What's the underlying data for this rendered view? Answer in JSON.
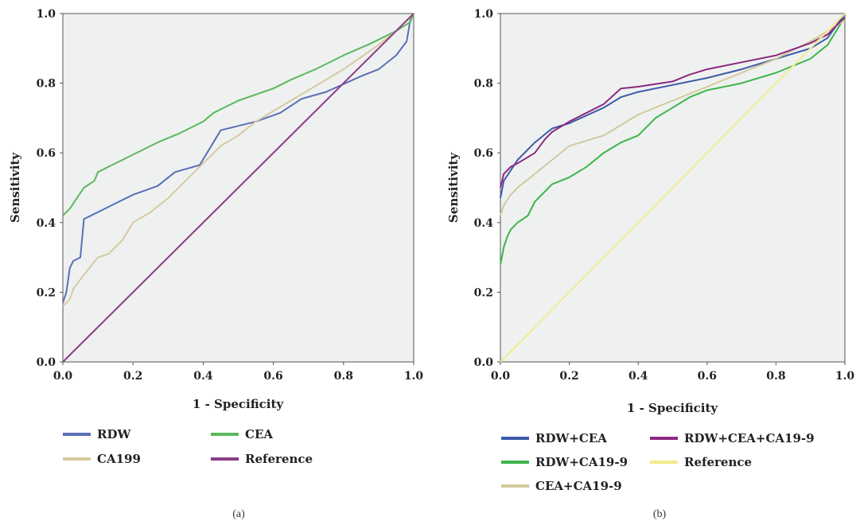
{
  "chart_data": [
    {
      "type": "line",
      "panel_label": "(a)",
      "xlabel": "1 - Specificity",
      "ylabel": "Sensitivity",
      "xlim": [
        0,
        1
      ],
      "ylim": [
        0,
        1
      ],
      "xticks": [
        "0.0",
        "0.2",
        "0.4",
        "0.6",
        "0.8",
        "1.0"
      ],
      "yticks": [
        "0.0",
        "0.2",
        "0.4",
        "0.6",
        "0.8",
        "1.0"
      ],
      "legend_position": "bottom",
      "series": [
        {
          "name": "RDW",
          "color": "#5a6fb5",
          "points": [
            [
              0,
              0.17
            ],
            [
              0.01,
              0.2
            ],
            [
              0.02,
              0.27
            ],
            [
              0.03,
              0.29
            ],
            [
              0.05,
              0.3
            ],
            [
              0.06,
              0.41
            ],
            [
              0.1,
              0.43
            ],
            [
              0.13,
              0.445
            ],
            [
              0.2,
              0.48
            ],
            [
              0.27,
              0.505
            ],
            [
              0.32,
              0.545
            ],
            [
              0.39,
              0.565
            ],
            [
              0.45,
              0.665
            ],
            [
              0.55,
              0.69
            ],
            [
              0.62,
              0.715
            ],
            [
              0.68,
              0.755
            ],
            [
              0.75,
              0.775
            ],
            [
              0.85,
              0.82
            ],
            [
              0.9,
              0.84
            ],
            [
              0.95,
              0.88
            ],
            [
              0.98,
              0.92
            ],
            [
              0.99,
              0.98
            ],
            [
              1.0,
              1.0
            ]
          ]
        },
        {
          "name": "CEA",
          "color": "#5cb85c",
          "points": [
            [
              0,
              0.42
            ],
            [
              0.02,
              0.44
            ],
            [
              0.04,
              0.47
            ],
            [
              0.06,
              0.5
            ],
            [
              0.09,
              0.52
            ],
            [
              0.1,
              0.545
            ],
            [
              0.14,
              0.565
            ],
            [
              0.2,
              0.595
            ],
            [
              0.27,
              0.63
            ],
            [
              0.33,
              0.655
            ],
            [
              0.4,
              0.69
            ],
            [
              0.43,
              0.715
            ],
            [
              0.5,
              0.75
            ],
            [
              0.6,
              0.785
            ],
            [
              0.65,
              0.81
            ],
            [
              0.72,
              0.84
            ],
            [
              0.8,
              0.88
            ],
            [
              0.88,
              0.915
            ],
            [
              0.95,
              0.95
            ],
            [
              0.99,
              0.975
            ],
            [
              1.0,
              1.0
            ]
          ]
        },
        {
          "name": "CA199",
          "color": "#d6ca9f",
          "points": [
            [
              0,
              0.16
            ],
            [
              0.02,
              0.18
            ],
            [
              0.03,
              0.21
            ],
            [
              0.06,
              0.25
            ],
            [
              0.1,
              0.3
            ],
            [
              0.13,
              0.31
            ],
            [
              0.17,
              0.35
            ],
            [
              0.2,
              0.4
            ],
            [
              0.25,
              0.43
            ],
            [
              0.3,
              0.47
            ],
            [
              0.35,
              0.52
            ],
            [
              0.4,
              0.57
            ],
            [
              0.45,
              0.62
            ],
            [
              0.5,
              0.65
            ],
            [
              0.55,
              0.69
            ],
            [
              0.6,
              0.72
            ],
            [
              0.65,
              0.75
            ],
            [
              0.7,
              0.78
            ],
            [
              0.8,
              0.84
            ],
            [
              0.85,
              0.875
            ],
            [
              0.9,
              0.91
            ],
            [
              0.95,
              0.95
            ],
            [
              1.0,
              1.0
            ]
          ]
        },
        {
          "name": "Reference",
          "color": "#8a3d87",
          "points": [
            [
              0,
              0
            ],
            [
              1,
              1
            ]
          ]
        }
      ]
    },
    {
      "type": "line",
      "panel_label": "(b)",
      "xlabel": "1 - Specificity",
      "ylabel": "Sensitivity",
      "xlim": [
        0,
        1
      ],
      "ylim": [
        0,
        1
      ],
      "xticks": [
        "0.0",
        "0.2",
        "0.4",
        "0.6",
        "0.8",
        "1.0"
      ],
      "yticks": [
        "0.0",
        "0.2",
        "0.4",
        "0.6",
        "0.8",
        "1.0"
      ],
      "legend_position": "bottom",
      "series": [
        {
          "name": "RDW+CEA",
          "color": "#3c5aa8",
          "points": [
            [
              0,
              0.47
            ],
            [
              0.01,
              0.52
            ],
            [
              0.03,
              0.55
            ],
            [
              0.05,
              0.58
            ],
            [
              0.1,
              0.63
            ],
            [
              0.15,
              0.67
            ],
            [
              0.2,
              0.685
            ],
            [
              0.3,
              0.73
            ],
            [
              0.35,
              0.76
            ],
            [
              0.4,
              0.775
            ],
            [
              0.5,
              0.795
            ],
            [
              0.6,
              0.815
            ],
            [
              0.7,
              0.84
            ],
            [
              0.8,
              0.87
            ],
            [
              0.9,
              0.9
            ],
            [
              0.95,
              0.93
            ],
            [
              1.0,
              1.0
            ]
          ]
        },
        {
          "name": "RDW+CA19-9",
          "color": "#3cb54a",
          "points": [
            [
              0,
              0.28
            ],
            [
              0.01,
              0.33
            ],
            [
              0.02,
              0.36
            ],
            [
              0.03,
              0.38
            ],
            [
              0.05,
              0.4
            ],
            [
              0.08,
              0.42
            ],
            [
              0.1,
              0.46
            ],
            [
              0.15,
              0.51
            ],
            [
              0.2,
              0.53
            ],
            [
              0.25,
              0.56
            ],
            [
              0.3,
              0.6
            ],
            [
              0.35,
              0.63
            ],
            [
              0.4,
              0.65
            ],
            [
              0.45,
              0.7
            ],
            [
              0.5,
              0.73
            ],
            [
              0.55,
              0.76
            ],
            [
              0.6,
              0.78
            ],
            [
              0.7,
              0.8
            ],
            [
              0.8,
              0.83
            ],
            [
              0.9,
              0.87
            ],
            [
              0.95,
              0.91
            ],
            [
              1.0,
              0.99
            ]
          ]
        },
        {
          "name": "CEA+CA19-9",
          "color": "#d2c99c",
          "points": [
            [
              0,
              0.42
            ],
            [
              0.01,
              0.45
            ],
            [
              0.03,
              0.48
            ],
            [
              0.05,
              0.5
            ],
            [
              0.1,
              0.54
            ],
            [
              0.15,
              0.58
            ],
            [
              0.2,
              0.62
            ],
            [
              0.3,
              0.65
            ],
            [
              0.4,
              0.71
            ],
            [
              0.5,
              0.75
            ],
            [
              0.6,
              0.79
            ],
            [
              0.7,
              0.83
            ],
            [
              0.8,
              0.87
            ],
            [
              0.9,
              0.92
            ],
            [
              1.0,
              0.98
            ]
          ]
        },
        {
          "name": "RDW+CEA+CA19-9",
          "color": "#8b2a7e",
          "points": [
            [
              0,
              0.5
            ],
            [
              0.01,
              0.54
            ],
            [
              0.03,
              0.56
            ],
            [
              0.05,
              0.57
            ],
            [
              0.1,
              0.6
            ],
            [
              0.13,
              0.64
            ],
            [
              0.15,
              0.66
            ],
            [
              0.2,
              0.69
            ],
            [
              0.3,
              0.74
            ],
            [
              0.35,
              0.785
            ],
            [
              0.4,
              0.79
            ],
            [
              0.5,
              0.805
            ],
            [
              0.55,
              0.825
            ],
            [
              0.6,
              0.84
            ],
            [
              0.7,
              0.86
            ],
            [
              0.8,
              0.88
            ],
            [
              0.9,
              0.915
            ],
            [
              0.95,
              0.94
            ],
            [
              1.0,
              0.99
            ]
          ]
        },
        {
          "name": "Reference",
          "color": "#f3ec8c",
          "points": [
            [
              0,
              0
            ],
            [
              1,
              1
            ]
          ]
        }
      ]
    }
  ]
}
